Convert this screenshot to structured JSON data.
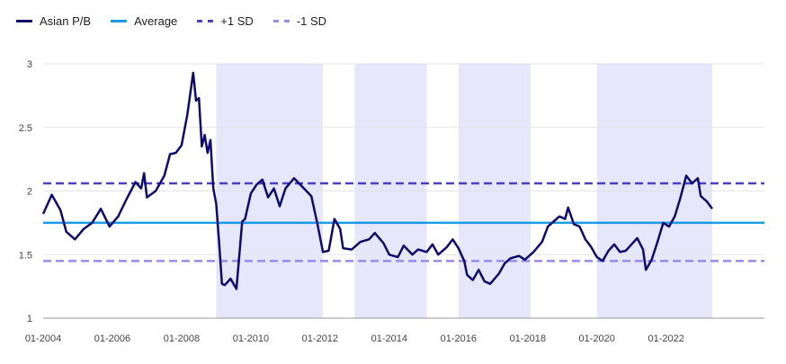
{
  "legend": [
    {
      "label": "Asian P/B",
      "color": "#0d0b6e",
      "style": "solid"
    },
    {
      "label": "Average",
      "color": "#1a9be6",
      "style": "solid"
    },
    {
      "label": "+1 SD",
      "color": "#4b3fc4",
      "style": "dashed"
    },
    {
      "label": "-1 SD",
      "color": "#9a8be8",
      "style": "dashed"
    }
  ],
  "chart_data": {
    "type": "line",
    "title": "",
    "xlabel": "",
    "ylabel": "",
    "ylim": [
      1,
      3
    ],
    "xlim": [
      "2004-01",
      "2023-05"
    ],
    "y_ticks": [
      "1",
      "1.5",
      "2",
      "2.5",
      "3"
    ],
    "y_tick_values": [
      1,
      1.5,
      2,
      2.5,
      3
    ],
    "x_ticks": [
      "01-2004",
      "01-2006",
      "01-2008",
      "01-2010",
      "01-2012",
      "01-2014",
      "01-2016",
      "01-2018",
      "01-2020",
      "01-2022"
    ],
    "x_tick_dates": [
      "2004-01",
      "2006-01",
      "2008-01",
      "2010-01",
      "2012-01",
      "2014-01",
      "2016-01",
      "2018-01",
      "2020-01",
      "2022-01"
    ],
    "grid": true,
    "legend_position": "top-left",
    "shaded_periods": [
      [
        "2009-01",
        "2012-02"
      ],
      [
        "2013-01",
        "2015-02"
      ],
      [
        "2016-01",
        "2018-02"
      ],
      [
        "2020-01",
        "2023-05"
      ]
    ],
    "shade_color": "#e6e7fb",
    "reference_lines": [
      {
        "name": "Average",
        "value": 1.75,
        "color": "#1a9be6",
        "dash": false
      },
      {
        "name": "+1 SD",
        "value": 2.06,
        "color": "#4b3fc4",
        "dash": true
      },
      {
        "name": "-1 SD",
        "value": 1.45,
        "color": "#9a8be8",
        "dash": true
      }
    ],
    "series": [
      {
        "name": "Asian P/B",
        "color": "#0d0b6e",
        "points": [
          [
            "2004-01",
            1.82
          ],
          [
            "2004-04",
            1.97
          ],
          [
            "2004-07",
            1.85
          ],
          [
            "2004-09",
            1.68
          ],
          [
            "2004-12",
            1.62
          ],
          [
            "2005-03",
            1.7
          ],
          [
            "2005-06",
            1.75
          ],
          [
            "2005-09",
            1.86
          ],
          [
            "2005-12",
            1.72
          ],
          [
            "2006-03",
            1.8
          ],
          [
            "2006-06",
            1.94
          ],
          [
            "2006-09",
            2.07
          ],
          [
            "2006-11",
            2.02
          ],
          [
            "2006-12",
            2.14
          ],
          [
            "2007-01",
            1.95
          ],
          [
            "2007-04",
            2.0
          ],
          [
            "2007-07",
            2.12
          ],
          [
            "2007-09",
            2.29
          ],
          [
            "2007-11",
            2.3
          ],
          [
            "2008-01",
            2.36
          ],
          [
            "2008-03",
            2.6
          ],
          [
            "2008-05",
            2.93
          ],
          [
            "2008-06",
            2.71
          ],
          [
            "2008-07",
            2.73
          ],
          [
            "2008-08",
            2.35
          ],
          [
            "2008-09",
            2.44
          ],
          [
            "2008-10",
            2.3
          ],
          [
            "2008-11",
            2.4
          ],
          [
            "2008-12",
            2.02
          ],
          [
            "2009-01",
            1.9
          ],
          [
            "2009-02",
            1.6
          ],
          [
            "2009-03",
            1.27
          ],
          [
            "2009-04",
            1.26
          ],
          [
            "2009-06",
            1.31
          ],
          [
            "2009-08",
            1.23
          ],
          [
            "2009-10",
            1.76
          ],
          [
            "2009-11",
            1.78
          ],
          [
            "2010-01",
            1.98
          ],
          [
            "2010-03",
            2.05
          ],
          [
            "2010-05",
            2.09
          ],
          [
            "2010-07",
            1.95
          ],
          [
            "2010-09",
            2.02
          ],
          [
            "2010-11",
            1.88
          ],
          [
            "2011-01",
            2.02
          ],
          [
            "2011-04",
            2.1
          ],
          [
            "2011-07",
            2.03
          ],
          [
            "2011-10",
            1.96
          ],
          [
            "2011-12",
            1.75
          ],
          [
            "2012-02",
            1.52
          ],
          [
            "2012-04",
            1.53
          ],
          [
            "2012-06",
            1.78
          ],
          [
            "2012-08",
            1.7
          ],
          [
            "2012-09",
            1.55
          ],
          [
            "2012-12",
            1.54
          ],
          [
            "2013-03",
            1.6
          ],
          [
            "2013-06",
            1.62
          ],
          [
            "2013-08",
            1.67
          ],
          [
            "2013-11",
            1.59
          ],
          [
            "2014-01",
            1.5
          ],
          [
            "2014-04",
            1.48
          ],
          [
            "2014-06",
            1.57
          ],
          [
            "2014-09",
            1.5
          ],
          [
            "2014-11",
            1.54
          ],
          [
            "2015-02",
            1.52
          ],
          [
            "2015-04",
            1.58
          ],
          [
            "2015-06",
            1.5
          ],
          [
            "2015-09",
            1.56
          ],
          [
            "2015-11",
            1.62
          ],
          [
            "2016-01",
            1.55
          ],
          [
            "2016-03",
            1.45
          ],
          [
            "2016-04",
            1.34
          ],
          [
            "2016-06",
            1.3
          ],
          [
            "2016-08",
            1.38
          ],
          [
            "2016-10",
            1.29
          ],
          [
            "2016-12",
            1.27
          ],
          [
            "2017-03",
            1.35
          ],
          [
            "2017-05",
            1.43
          ],
          [
            "2017-07",
            1.47
          ],
          [
            "2017-10",
            1.49
          ],
          [
            "2017-12",
            1.46
          ],
          [
            "2018-03",
            1.52
          ],
          [
            "2018-06",
            1.6
          ],
          [
            "2018-08",
            1.72
          ],
          [
            "2018-10",
            1.76
          ],
          [
            "2018-12",
            1.8
          ],
          [
            "2019-02",
            1.78
          ],
          [
            "2019-03",
            1.87
          ],
          [
            "2019-05",
            1.74
          ],
          [
            "2019-07",
            1.72
          ],
          [
            "2019-09",
            1.62
          ],
          [
            "2019-11",
            1.56
          ],
          [
            "2020-01",
            1.48
          ],
          [
            "2020-03",
            1.45
          ],
          [
            "2020-05",
            1.53
          ],
          [
            "2020-07",
            1.58
          ],
          [
            "2020-09",
            1.52
          ],
          [
            "2020-11",
            1.53
          ],
          [
            "2021-01",
            1.58
          ],
          [
            "2021-03",
            1.63
          ],
          [
            "2021-05",
            1.54
          ],
          [
            "2021-06",
            1.38
          ],
          [
            "2021-08",
            1.46
          ],
          [
            "2021-10",
            1.6
          ],
          [
            "2021-12",
            1.75
          ],
          [
            "2022-02",
            1.72
          ],
          [
            "2022-04",
            1.8
          ],
          [
            "2022-06",
            1.95
          ],
          [
            "2022-08",
            2.12
          ],
          [
            "2022-10",
            2.06
          ],
          [
            "2022-12",
            2.1
          ],
          [
            "2023-01",
            1.96
          ],
          [
            "2023-03",
            1.92
          ],
          [
            "2023-05",
            1.86
          ]
        ]
      }
    ]
  }
}
